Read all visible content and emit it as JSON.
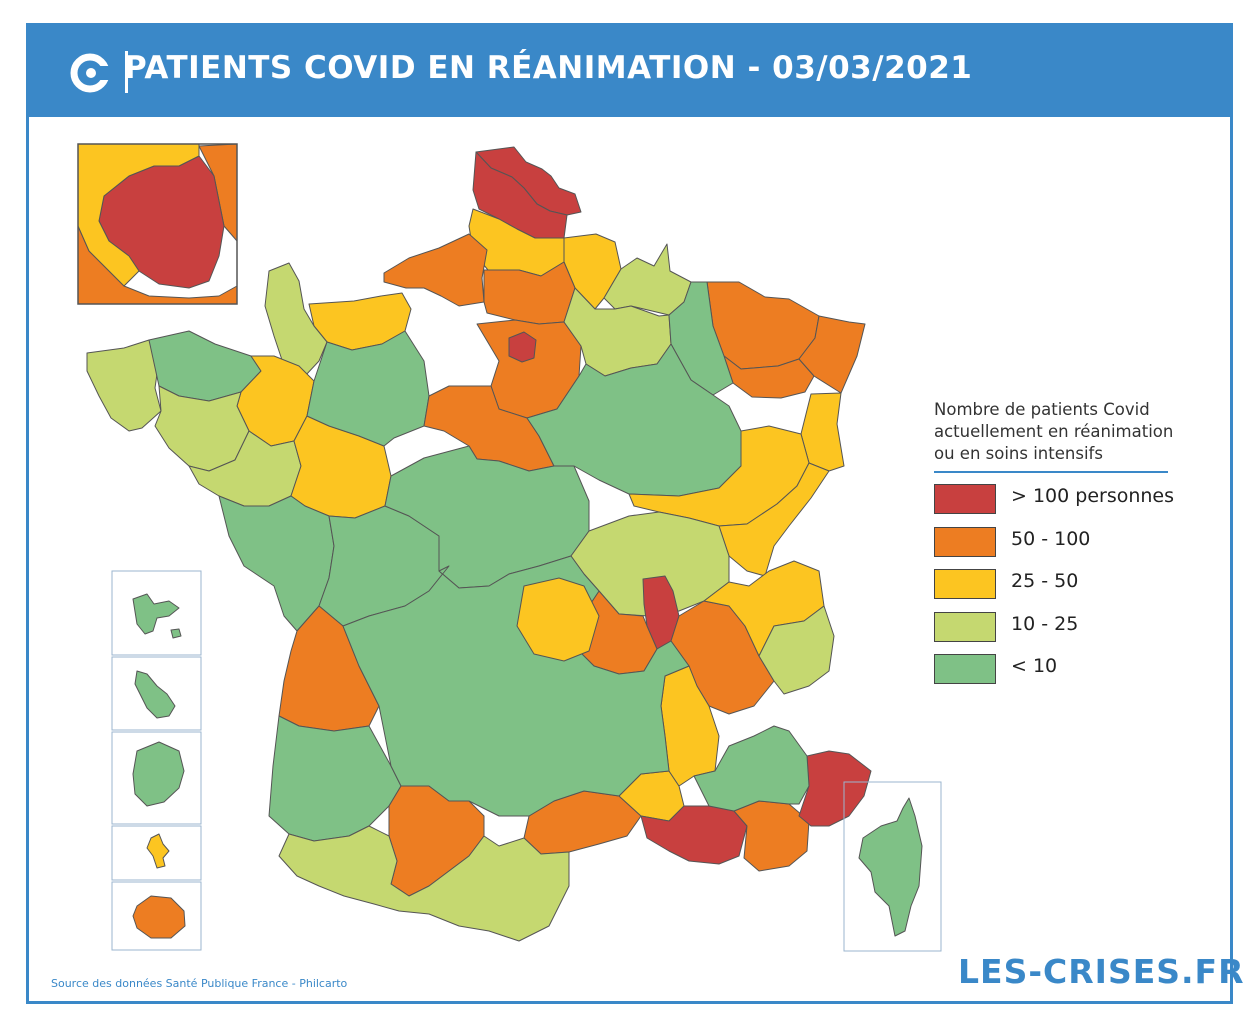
{
  "header": {
    "title": "PATIENTS COVID EN RÉANIMATION - 03/03/2021",
    "logo": "les-crises-c-logo"
  },
  "legend": {
    "title_lines": [
      "Nombre de patients Covid",
      "actuellement en réanimation",
      "ou en soins intensifs"
    ],
    "items": [
      {
        "label": "> 100 personnes",
        "color": "#c8403f"
      },
      {
        "label": "50 - 100",
        "color": "#ed7d22"
      },
      {
        "label": "25 - 50",
        "color": "#fcc521"
      },
      {
        "label": "10 - 25",
        "color": "#c5d870"
      },
      {
        "label": "< 10",
        "color": "#7fc186"
      }
    ]
  },
  "map": {
    "border_color": "#555555",
    "zones": [
      {
        "id": "nord",
        "class": 0
      },
      {
        "id": "pas-de-calais",
        "class": 0
      },
      {
        "id": "somme",
        "class": 2
      },
      {
        "id": "aisne",
        "class": 2
      },
      {
        "id": "ardennes",
        "class": 3
      },
      {
        "id": "seine-maritime",
        "class": 1
      },
      {
        "id": "oise",
        "class": 1
      },
      {
        "id": "ile-de-france-ring",
        "class": 1
      },
      {
        "id": "paris-core",
        "class": 0
      },
      {
        "id": "marne",
        "class": 3
      },
      {
        "id": "moselle",
        "class": 1
      },
      {
        "id": "meurthe-et-moselle",
        "class": 1
      },
      {
        "id": "bas-rhin",
        "class": 1
      },
      {
        "id": "meuse",
        "class": 4
      },
      {
        "id": "haut-rhin",
        "class": 2
      },
      {
        "id": "calvados",
        "class": 2
      },
      {
        "id": "manche",
        "class": 3
      },
      {
        "id": "finistere",
        "class": 3
      },
      {
        "id": "cotes-darmor",
        "class": 4
      },
      {
        "id": "ille-et-vilaine",
        "class": 2
      },
      {
        "id": "morbihan",
        "class": 3
      },
      {
        "id": "loire-atlantique",
        "class": 3
      },
      {
        "id": "maine-et-loire",
        "class": 2
      },
      {
        "id": "sarthe",
        "class": 4
      },
      {
        "id": "loiret",
        "class": 1
      },
      {
        "id": "yonne",
        "class": 4
      },
      {
        "id": "cote-dor",
        "class": 2
      },
      {
        "id": "doubs",
        "class": 2
      },
      {
        "id": "vendee",
        "class": 4
      },
      {
        "id": "vienne",
        "class": 4
      },
      {
        "id": "indre",
        "class": 4
      },
      {
        "id": "allier",
        "class": 3
      },
      {
        "id": "rhone",
        "class": 0
      },
      {
        "id": "loire",
        "class": 1
      },
      {
        "id": "isere",
        "class": 1
      },
      {
        "id": "haute-savoie",
        "class": 2
      },
      {
        "id": "savoie",
        "class": 3
      },
      {
        "id": "gironde",
        "class": 1
      },
      {
        "id": "landes",
        "class": 4
      },
      {
        "id": "haute-garonne",
        "class": 1
      },
      {
        "id": "herault",
        "class": 1
      },
      {
        "id": "gard",
        "class": 2
      },
      {
        "id": "drome",
        "class": 2
      },
      {
        "id": "bouches-du-rhone",
        "class": 0
      },
      {
        "id": "var",
        "class": 1
      },
      {
        "id": "alpes-maritimes",
        "class": 0
      },
      {
        "id": "alpes-hp",
        "class": 4
      },
      {
        "id": "pyrenees",
        "class": 3
      },
      {
        "id": "massif-central",
        "class": 4
      },
      {
        "id": "puy-de-dome",
        "class": 2
      },
      {
        "id": "corse",
        "class": 4
      },
      {
        "id": "inset-paris-ring",
        "class": 1
      },
      {
        "id": "inset-paris-core",
        "class": 0
      },
      {
        "id": "inset-paris-north",
        "class": 2
      },
      {
        "id": "guadeloupe",
        "class": 4
      },
      {
        "id": "martinique",
        "class": 4
      },
      {
        "id": "guyane",
        "class": 4
      },
      {
        "id": "mayotte",
        "class": 2
      },
      {
        "id": "la-reunion",
        "class": 1
      }
    ]
  },
  "footer": {
    "source": "Source des données Santé Publique France - Philcarto",
    "brand": "LES-CRISES.FR"
  }
}
